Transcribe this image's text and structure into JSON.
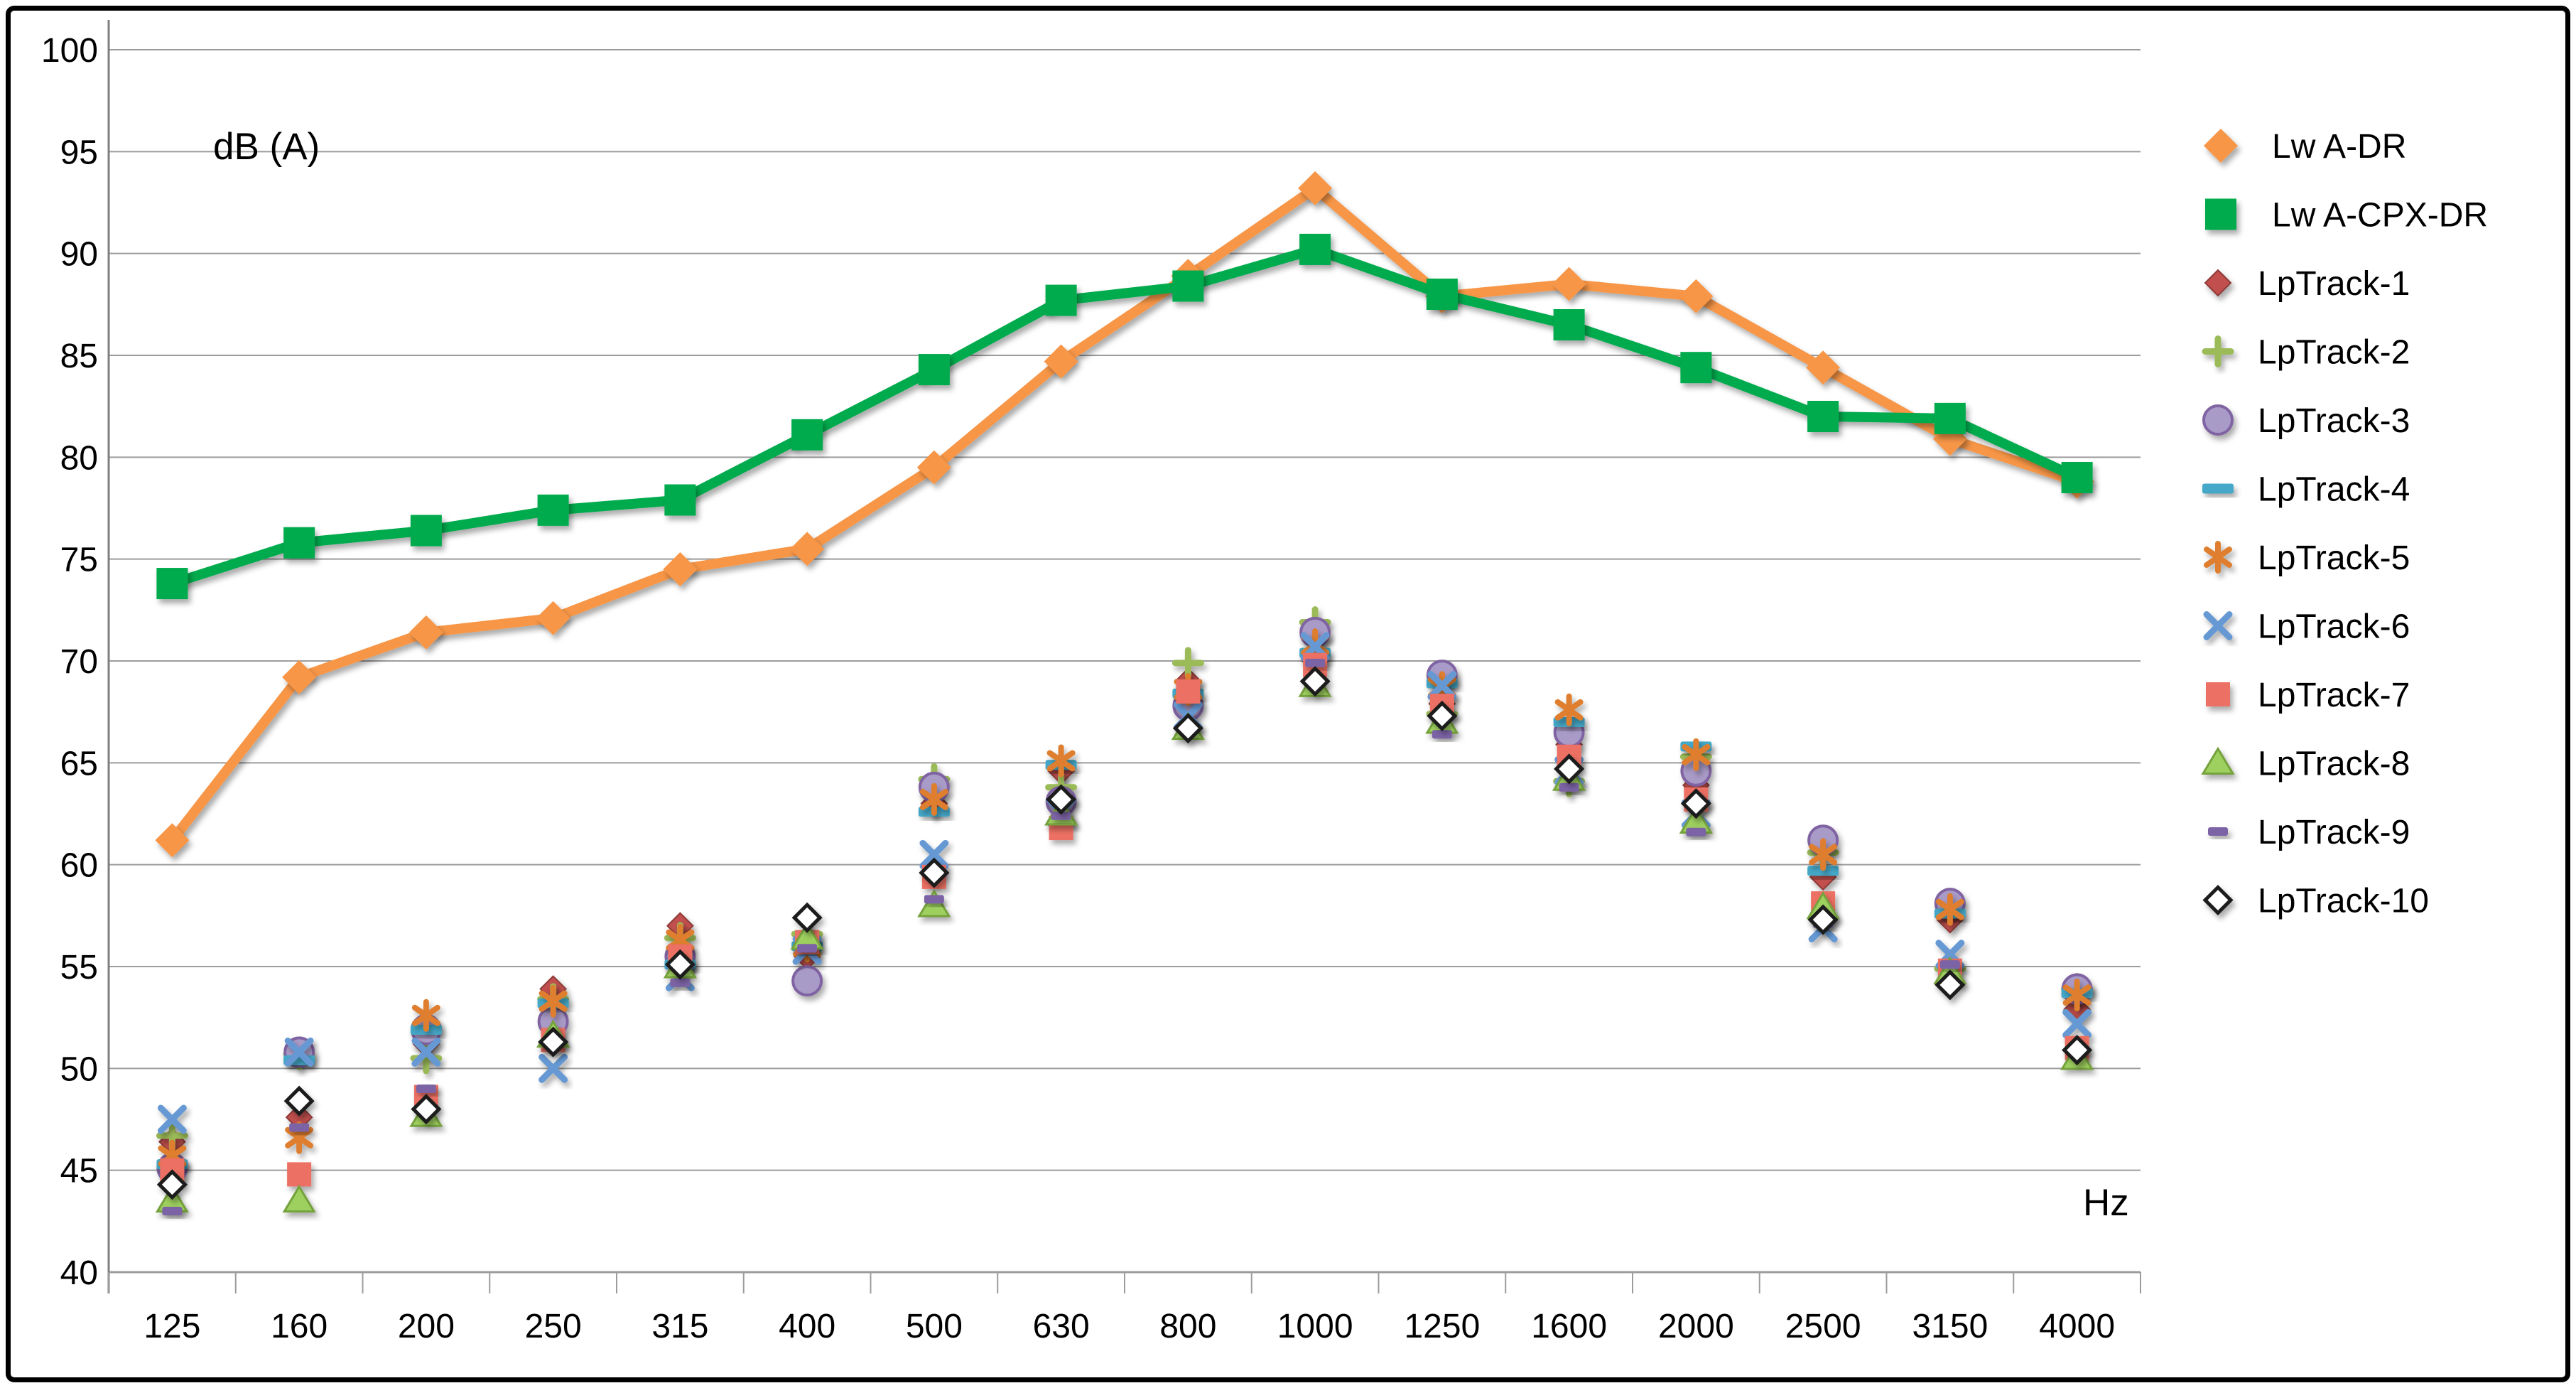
{
  "chart_data": {
    "type": "line+scatter",
    "title": "",
    "ylabel": "dB (A)",
    "xlabel": "Hz",
    "ylim": [
      40,
      100
    ],
    "grid": true,
    "legend_position": "right",
    "y_ticks": [
      100,
      95,
      90,
      85,
      80,
      75,
      70,
      65,
      60,
      55,
      50,
      45,
      40
    ],
    "categories": [
      125,
      160,
      200,
      250,
      315,
      400,
      500,
      630,
      800,
      1000,
      1250,
      1600,
      2000,
      2500,
      3150,
      4000
    ],
    "series": [
      {
        "name": "Lw A-DR",
        "type": "line",
        "marker": "diamond-lg",
        "color": "#F79646",
        "values": [
          61.2,
          69.2,
          71.4,
          72.1,
          74.5,
          75.5,
          79.5,
          84.7,
          88.9,
          93.2,
          87.9,
          88.5,
          87.9,
          84.4,
          80.9,
          78.8
        ]
      },
      {
        "name": "Lw A-CPX-DR",
        "type": "line",
        "marker": "square-lg",
        "color": "#00AB4E",
        "values": [
          73.8,
          75.8,
          76.4,
          77.4,
          77.9,
          81.1,
          84.3,
          87.7,
          88.4,
          90.2,
          88.0,
          86.5,
          84.4,
          82.0,
          81.9,
          79.0
        ]
      },
      {
        "name": "LpTrack-1",
        "type": "scatter",
        "marker": "diamond",
        "color": "#C0504D",
        "values": [
          46.4,
          47.6,
          51.2,
          53.9,
          57.0,
          55.5,
          63.0,
          64.6,
          69.0,
          70.0,
          67.9,
          65.9,
          63.9,
          59.4,
          57.3,
          52.9
        ]
      },
      {
        "name": "LpTrack-2",
        "type": "scatter",
        "marker": "plus",
        "color": "#9BBB59",
        "values": [
          46.7,
          50.7,
          50.5,
          53.4,
          56.4,
          56.6,
          64.2,
          63.8,
          69.9,
          71.9,
          67.4,
          64.1,
          65.3,
          60.6,
          54.9,
          53.9
        ]
      },
      {
        "name": "LpTrack-3",
        "type": "scatter",
        "marker": "circle",
        "color": "#8064A2",
        "fill": "#A99BC7",
        "values": [
          45.1,
          50.8,
          51.9,
          52.3,
          55.5,
          54.3,
          63.8,
          63.1,
          67.8,
          71.4,
          69.3,
          66.5,
          64.6,
          61.2,
          58.1,
          53.9
        ]
      },
      {
        "name": "LpTrack-4",
        "type": "scatter",
        "marker": "dash",
        "color": "#44A8C8",
        "values": [
          45.3,
          50.4,
          51.9,
          53.2,
          55.1,
          56.0,
          62.6,
          64.9,
          68.4,
          70.4,
          68.9,
          67.0,
          65.8,
          59.7,
          57.6,
          53.7
        ]
      },
      {
        "name": "LpTrack-5",
        "type": "scatter",
        "marker": "asterisk",
        "color": "#DE7E2E",
        "values": [
          45.7,
          46.6,
          52.6,
          53.3,
          56.3,
          56.0,
          63.2,
          65.1,
          68.6,
          70.8,
          68.7,
          67.6,
          65.4,
          60.5,
          57.8,
          53.6
        ]
      },
      {
        "name": "LpTrack-6",
        "type": "scatter",
        "marker": "x",
        "color": "#6699D4",
        "values": [
          47.5,
          50.8,
          50.8,
          50.0,
          54.5,
          55.8,
          60.5,
          62.6,
          67.3,
          70.7,
          68.8,
          64.6,
          62.5,
          56.9,
          55.6,
          52.2
        ]
      },
      {
        "name": "LpTrack-7",
        "type": "scatter",
        "marker": "square",
        "color": "#EC6F63",
        "values": [
          45.0,
          44.8,
          48.6,
          51.4,
          55.5,
          56.2,
          59.4,
          61.8,
          68.5,
          69.8,
          67.8,
          65.3,
          63.2,
          58.1,
          54.8,
          51.0
        ]
      },
      {
        "name": "LpTrack-8",
        "type": "scatter",
        "marker": "triangle",
        "color": "#76A23C",
        "fill": "#9ED05F",
        "values": [
          43.5,
          43.5,
          47.7,
          51.6,
          55.0,
          56.4,
          58.0,
          62.5,
          66.7,
          68.8,
          67.0,
          64.2,
          62.1,
          57.9,
          54.7,
          50.5
        ]
      },
      {
        "name": "LpTrack-9",
        "type": "scatter",
        "marker": "shortdash",
        "color": "#7C64A5",
        "values": [
          43.0,
          47.1,
          49.0,
          51.4,
          54.2,
          55.9,
          58.3,
          62.4,
          66.8,
          69.9,
          66.4,
          63.8,
          61.6,
          57.1,
          55.1,
          50.9
        ]
      },
      {
        "name": "LpTrack-10",
        "type": "scatter",
        "marker": "open-diamond",
        "color": "#1A1A1A",
        "fill": "#FFFFFF",
        "values": [
          44.3,
          48.4,
          48.0,
          51.3,
          55.1,
          57.4,
          59.6,
          63.2,
          66.7,
          69.0,
          67.3,
          64.7,
          63.0,
          57.3,
          54.1,
          50.9
        ]
      }
    ]
  },
  "style": {
    "gridline_color": "#9C9C9C",
    "axis_color": "#7F7F7F",
    "text_color": "#000000",
    "background": "#FFFFFF",
    "border_color": "#000000"
  }
}
